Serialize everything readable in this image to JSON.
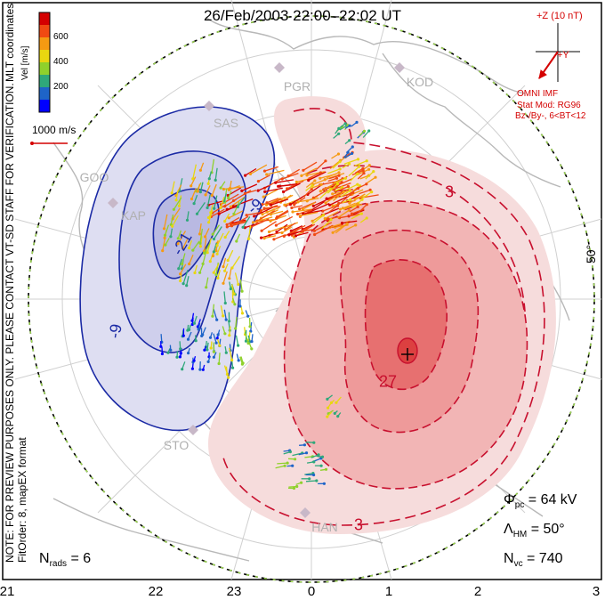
{
  "title": "26/Feb/2003 22:00–22:02 UT",
  "side_label": "MLT coordinates",
  "note": "NOTE: FOR PREVIEW PURPOSES ONLY. PLEASE CONTACT VT-SD STAFF FOR VERIFICATION.",
  "fit_order": "FitOrder: 8, mapEX format",
  "velocity_scale": {
    "title": "Vel [m/s]",
    "ticks": [
      "600",
      "400",
      "200"
    ],
    "reference": "1000 m/s",
    "colors": [
      "#0000ff",
      "#1e64c8",
      "#2fa87a",
      "#8fd12c",
      "#e8d610",
      "#f59a12",
      "#f04a12",
      "#d40000"
    ]
  },
  "imf": {
    "z_label": "+Z (10 nT)",
    "y_label": "+Y",
    "source": "OMNI IMF",
    "model": "Stat Mod: RG96",
    "condition": "Bz-/By-, 6<BT<12"
  },
  "stats": {
    "phi_symbol": "Φ",
    "phi_sub": "pc",
    "phi_value": " = 64 kV",
    "lambda_symbol": "Λ",
    "lambda_sub": "HM",
    "lambda_value": " = 50°",
    "nvc_symbol": "N",
    "nvc_sub": "vc",
    "nvc_value": " = 740",
    "nrads_symbol": "N",
    "nrads_sub": "rads",
    "nrads_value": " = 6"
  },
  "mlt_axis": [
    "21",
    "22",
    "23",
    "0",
    "1",
    "2",
    "3"
  ],
  "latitude_label": "50°",
  "stations": [
    "PGR",
    "KOD",
    "SAS",
    "KAP",
    "GOO",
    "STO",
    "HAN"
  ],
  "contour_labels": [
    "3",
    "27",
    "3",
    "-9",
    "-21",
    "-9"
  ],
  "colors": {
    "positive_cell": "#f6c8c8",
    "positive_core": "#ee8080",
    "negative_cell": "#dcdcf2",
    "positive_line": "#c8102e",
    "negative_line": "#1b2aa5",
    "imf": "#d40000"
  }
}
